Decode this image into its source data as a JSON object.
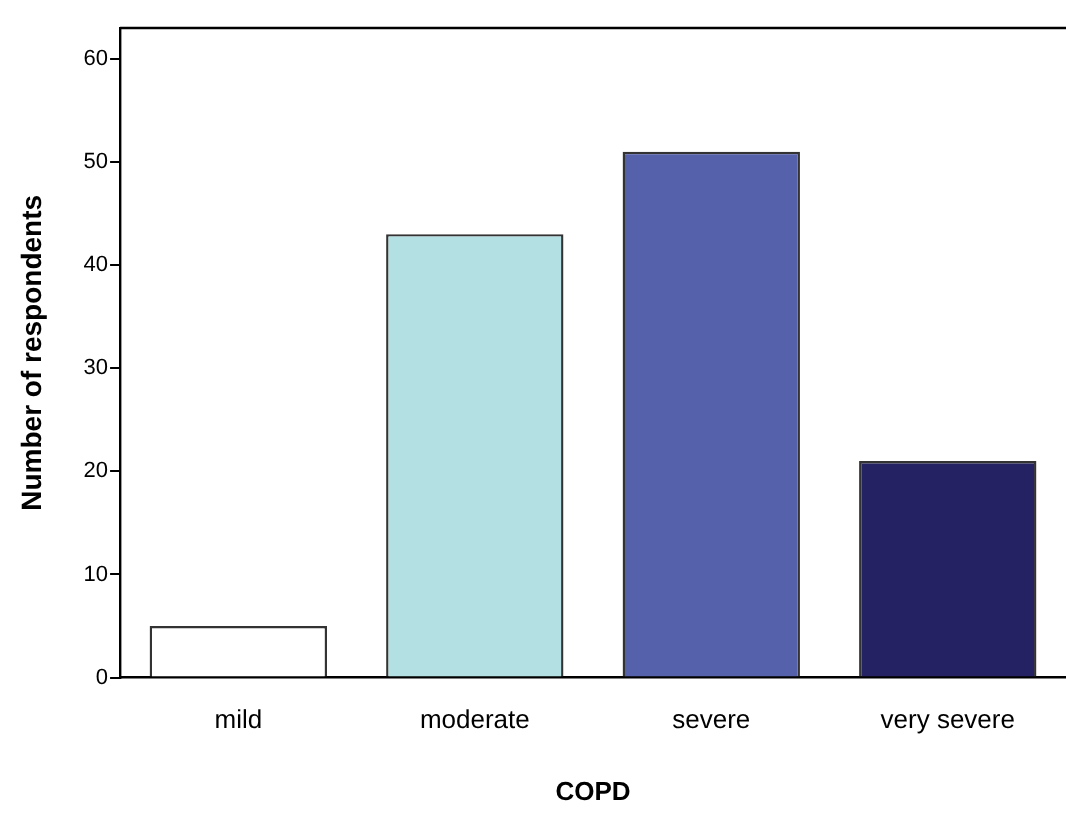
{
  "chart_data": {
    "type": "bar",
    "xlabel": "COPD",
    "ylabel": "Number of respondents",
    "categories": [
      "mild",
      "moderate",
      "severe",
      "very severe"
    ],
    "values": [
      5,
      43,
      51,
      21
    ],
    "colors": [
      "#ffffff",
      "#b3e0e3",
      "#5561ab",
      "#242263"
    ],
    "ylim": [
      0,
      63
    ],
    "yticks": [
      0,
      10,
      20,
      30,
      40,
      50,
      60
    ],
    "grid": false,
    "legend": false
  }
}
